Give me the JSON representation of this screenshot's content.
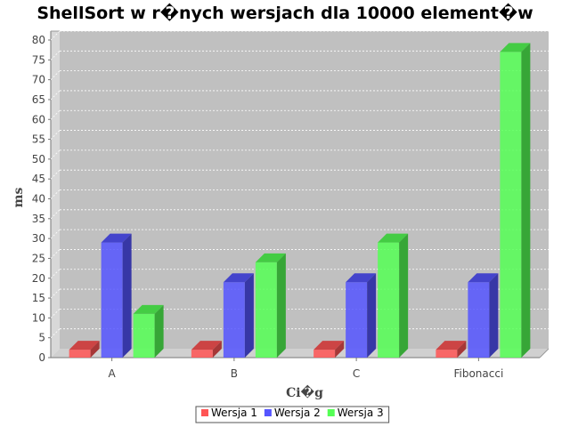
{
  "chart_data": {
    "type": "bar",
    "title": "ShellSort w r�nych wersjach dla 10000 element�w",
    "xlabel": "Ci�g",
    "ylabel": "ms",
    "categories": [
      "A",
      "B",
      "C",
      "Fibonacci"
    ],
    "series": [
      {
        "name": "Wersja 1",
        "color": "#ff5555",
        "values": [
          2,
          2,
          2,
          2
        ]
      },
      {
        "name": "Wersja 2",
        "color": "#5555ff",
        "values": [
          29,
          19,
          19,
          19
        ]
      },
      {
        "name": "Wersja 3",
        "color": "#55ff55",
        "values": [
          11,
          24,
          29,
          77
        ]
      }
    ],
    "ylim": [
      0,
      80
    ],
    "yticks": [
      0,
      5,
      10,
      15,
      20,
      25,
      30,
      35,
      40,
      45,
      50,
      55,
      60,
      65,
      70,
      75,
      80
    ],
    "grid": true,
    "legend_position": "bottom",
    "style": "3d",
    "plot_background": "#c0c0c0"
  }
}
